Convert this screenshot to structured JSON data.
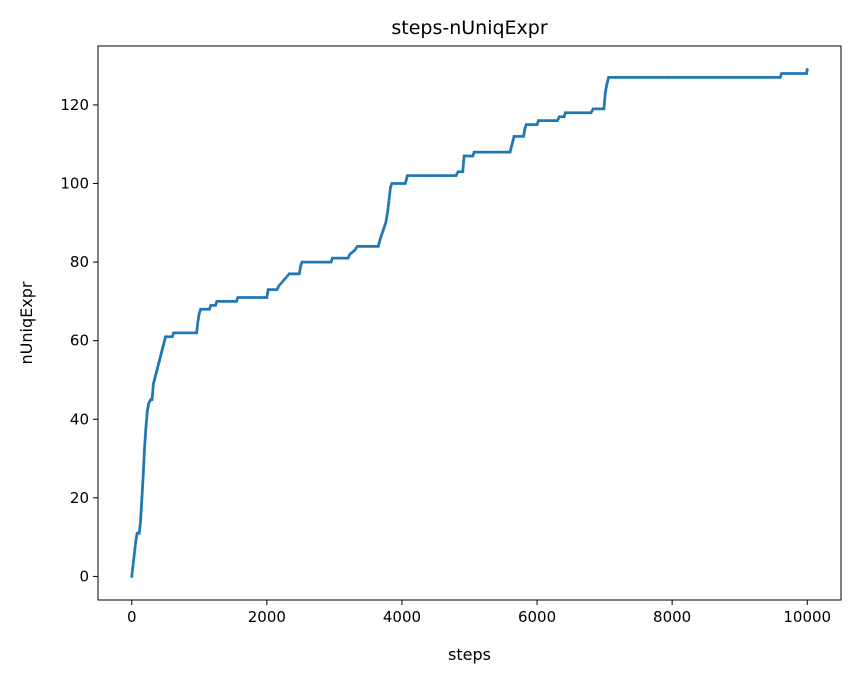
{
  "chart_data": {
    "type": "line",
    "title": "steps-nUniqExpr",
    "xlabel": "steps",
    "ylabel": "nUniqExpr",
    "xlim": [
      -500,
      10500
    ],
    "ylim": [
      -6,
      135
    ],
    "xticks": [
      0,
      2000,
      4000,
      6000,
      8000,
      10000
    ],
    "yticks": [
      0,
      20,
      40,
      60,
      80,
      100,
      120
    ],
    "grid": false,
    "marker": "dot",
    "colors": {
      "series": "#1f77b4",
      "axis": "#000000",
      "background": "#ffffff"
    },
    "series": [
      {
        "name": "nUniqExpr",
        "points": [
          [
            0,
            0
          ],
          [
            20,
            3
          ],
          [
            40,
            6
          ],
          [
            60,
            9
          ],
          [
            80,
            11
          ],
          [
            110,
            11
          ],
          [
            130,
            14
          ],
          [
            150,
            20
          ],
          [
            170,
            26
          ],
          [
            190,
            33
          ],
          [
            210,
            38
          ],
          [
            230,
            42
          ],
          [
            250,
            44
          ],
          [
            280,
            45
          ],
          [
            300,
            45
          ],
          [
            320,
            49
          ],
          [
            350,
            51
          ],
          [
            380,
            53
          ],
          [
            410,
            55
          ],
          [
            440,
            57
          ],
          [
            470,
            59
          ],
          [
            500,
            61
          ],
          [
            600,
            61
          ],
          [
            620,
            62
          ],
          [
            960,
            62
          ],
          [
            980,
            65
          ],
          [
            1000,
            67
          ],
          [
            1020,
            68
          ],
          [
            1150,
            68
          ],
          [
            1170,
            69
          ],
          [
            1240,
            69
          ],
          [
            1260,
            70
          ],
          [
            1550,
            70
          ],
          [
            1570,
            71
          ],
          [
            2000,
            71
          ],
          [
            2020,
            73
          ],
          [
            2150,
            73
          ],
          [
            2180,
            74
          ],
          [
            2230,
            75
          ],
          [
            2280,
            76
          ],
          [
            2330,
            77
          ],
          [
            2480,
            77
          ],
          [
            2500,
            79
          ],
          [
            2520,
            80
          ],
          [
            2950,
            80
          ],
          [
            2970,
            81
          ],
          [
            3200,
            81
          ],
          [
            3230,
            82
          ],
          [
            3300,
            83
          ],
          [
            3340,
            84
          ],
          [
            3650,
            84
          ],
          [
            3680,
            86
          ],
          [
            3720,
            88
          ],
          [
            3760,
            90
          ],
          [
            3790,
            93
          ],
          [
            3810,
            96
          ],
          [
            3830,
            99
          ],
          [
            3850,
            100
          ],
          [
            4050,
            100
          ],
          [
            4080,
            102
          ],
          [
            4800,
            102
          ],
          [
            4830,
            103
          ],
          [
            4900,
            103
          ],
          [
            4920,
            107
          ],
          [
            5050,
            107
          ],
          [
            5070,
            108
          ],
          [
            5600,
            108
          ],
          [
            5630,
            110
          ],
          [
            5660,
            112
          ],
          [
            5800,
            112
          ],
          [
            5820,
            114
          ],
          [
            5840,
            115
          ],
          [
            6000,
            115
          ],
          [
            6020,
            116
          ],
          [
            6300,
            116
          ],
          [
            6330,
            117
          ],
          [
            6400,
            117
          ],
          [
            6420,
            118
          ],
          [
            6800,
            118
          ],
          [
            6830,
            119
          ],
          [
            6990,
            119
          ],
          [
            7010,
            123
          ],
          [
            7030,
            125
          ],
          [
            7060,
            127
          ],
          [
            9600,
            127
          ],
          [
            9620,
            128
          ],
          [
            9990,
            128
          ],
          [
            10000,
            129
          ]
        ]
      }
    ]
  }
}
